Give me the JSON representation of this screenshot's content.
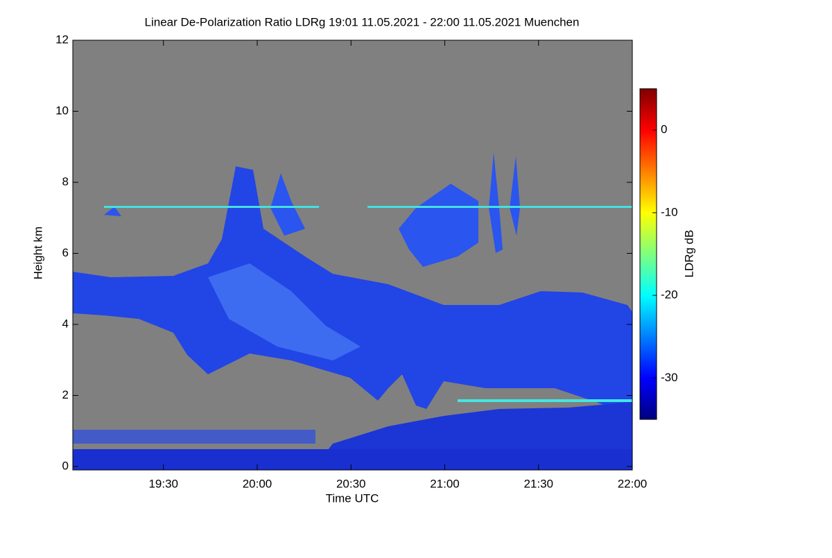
{
  "chart_data": {
    "type": "heatmap",
    "title": "Linear De-Polarization Ratio LDRg   19:01 11.05.2021 - 22:00 11.05.2021 Muenchen",
    "x_label": "Time UTC",
    "y_label": "Height km",
    "colorbar_label": "LDRg dB",
    "xlim": [
      1141,
      1320
    ],
    "xticks": [
      {
        "value": 1170,
        "label": "19:30"
      },
      {
        "value": 1200,
        "label": "20:00"
      },
      {
        "value": 1230,
        "label": "20:30"
      },
      {
        "value": 1260,
        "label": "21:00"
      },
      {
        "value": 1290,
        "label": "21:30"
      },
      {
        "value": 1320,
        "label": "22:00"
      }
    ],
    "ylim": [
      0,
      12
    ],
    "yticks": [
      0,
      2,
      4,
      6,
      8,
      10,
      12
    ],
    "clim": [
      -35,
      5
    ],
    "cticks": [
      0,
      -10,
      -20,
      -30
    ],
    "colormap": [
      "#00007f",
      "#0000ff",
      "#007fff",
      "#00ffff",
      "#7fff7f",
      "#ffff00",
      "#ff7f00",
      "#ff0000",
      "#7f0000"
    ],
    "background": "#808080"
  }
}
